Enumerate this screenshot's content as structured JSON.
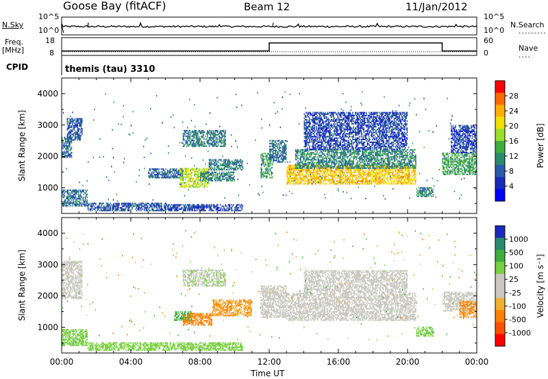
{
  "header": {
    "station": "Goose Bay (fitACF)",
    "beam": "Beam 12",
    "date": "11/Jan/2012"
  },
  "panel_labels": {
    "nsky": "N.Sky",
    "nsearch": "N.Search",
    "freq_line1": "Freq.",
    "freq_line2": "[MHz]",
    "nave": "Nave",
    "cpid": "CPID",
    "cpid_value": "themis (tau) 3310",
    "noise_ticks_top": "10^5",
    "noise_ticks_bottom": "10^0",
    "freq_ticks": [
      "18",
      "8"
    ],
    "nave_ticks": [
      "60",
      "0"
    ]
  },
  "chart_data": [
    {
      "type": "line",
      "name": "noise",
      "series": [
        {
          "name": "N.Sky",
          "style": "solid"
        },
        {
          "name": "N.Search",
          "style": "dotted"
        }
      ]
    },
    {
      "type": "line",
      "name": "frequency_nave",
      "x": [
        0,
        12,
        12,
        22,
        22,
        24
      ],
      "series": [
        {
          "name": "Freq.",
          "values": [
            10.5,
            10.5,
            15,
            15,
            10.5,
            10.5
          ],
          "style": "solid"
        },
        {
          "name": "Nave",
          "values": [
            10,
            10,
            10,
            10,
            10,
            10
          ],
          "style": "dotted"
        }
      ]
    },
    {
      "type": "heatmap",
      "name": "power",
      "ylabel": "Slant Range [km]",
      "ylim": [
        180,
        4500
      ],
      "yticks": [
        1000,
        2000,
        3000,
        4000
      ],
      "colorbar": {
        "label": "Power [dB]",
        "ticks": [
          "28",
          "24",
          "20",
          "16",
          "12",
          "8",
          "4"
        ],
        "colors": [
          "#ff0000",
          "#ff6a00",
          "#ffb000",
          "#f0e000",
          "#9adf2a",
          "#3fae3f",
          "#2a8a70",
          "#2a5aa8",
          "#1a2ab8",
          "#0000ff"
        ]
      },
      "regions": [
        {
          "t0": 0.0,
          "t1": 0.6,
          "r0": 1950,
          "r1": 2600,
          "level": 8
        },
        {
          "t0": 0.3,
          "t1": 1.2,
          "r0": 2500,
          "r1": 3200,
          "level": 6
        },
        {
          "t0": 0.0,
          "t1": 1.5,
          "r0": 400,
          "r1": 900,
          "level": 8
        },
        {
          "t0": 1.5,
          "t1": 6.0,
          "r0": 250,
          "r1": 500,
          "level": 6
        },
        {
          "t0": 6.0,
          "t1": 10.5,
          "r0": 250,
          "r1": 450,
          "level": 5
        },
        {
          "t0": 5.0,
          "t1": 7.0,
          "r0": 1300,
          "r1": 1600,
          "level": 7
        },
        {
          "t0": 6.8,
          "t1": 8.5,
          "r0": 1000,
          "r1": 1600,
          "level": 18
        },
        {
          "t0": 8.0,
          "t1": 10.0,
          "r0": 1200,
          "r1": 1500,
          "level": 9
        },
        {
          "t0": 8.5,
          "t1": 10.5,
          "r0": 1550,
          "r1": 1900,
          "level": 9
        },
        {
          "t0": 7.0,
          "t1": 9.5,
          "r0": 2300,
          "r1": 2800,
          "level": 9
        },
        {
          "t0": 11.5,
          "t1": 12.2,
          "r0": 1300,
          "r1": 2100,
          "level": 12
        },
        {
          "t0": 12.0,
          "t1": 13.0,
          "r0": 1800,
          "r1": 2500,
          "level": 8
        },
        {
          "t0": 13.0,
          "t1": 20.5,
          "r0": 1100,
          "r1": 1700,
          "level": 22
        },
        {
          "t0": 13.5,
          "t1": 20.5,
          "r0": 1600,
          "r1": 2200,
          "level": 10
        },
        {
          "t0": 14.0,
          "t1": 20.0,
          "r0": 2200,
          "r1": 3400,
          "level": 5
        },
        {
          "t0": 20.5,
          "t1": 21.5,
          "r0": 700,
          "r1": 1000,
          "level": 10
        },
        {
          "t0": 22.0,
          "t1": 24.0,
          "r0": 1400,
          "r1": 2100,
          "level": 12
        },
        {
          "t0": 22.5,
          "t1": 24.0,
          "r0": 2100,
          "r1": 3000,
          "level": 5
        }
      ]
    },
    {
      "type": "heatmap",
      "name": "velocity",
      "ylabel": "Slant Range [km]",
      "ylim": [
        180,
        4500
      ],
      "yticks": [
        1000,
        2000,
        3000,
        4000
      ],
      "xlabel": "Time UT",
      "xticks": [
        "00:00",
        "04:00",
        "08:00",
        "12:00",
        "16:00",
        "20:00",
        "00:00"
      ],
      "colorbar": {
        "label": "Velocity [m s⁻¹]",
        "ticks": [
          "1000",
          "500",
          "100",
          "25",
          "-25",
          "-100",
          "-500",
          "-1000"
        ],
        "colors": [
          "#1a2ab8",
          "#2a8a70",
          "#3fae3f",
          "#7ad040",
          "#c8c8c0",
          "#c8c8c0",
          "#f0b030",
          "#ff8000",
          "#ff5000",
          "#ff0000"
        ]
      },
      "regions": [
        {
          "t0": 0.0,
          "t1": 1.2,
          "r0": 1900,
          "r1": 3100,
          "vel": 0
        },
        {
          "t0": 0.0,
          "t1": 1.5,
          "r0": 400,
          "r1": 900,
          "vel": 80
        },
        {
          "t0": 1.5,
          "t1": 10.5,
          "r0": 250,
          "r1": 500,
          "vel": 40
        },
        {
          "t0": 6.5,
          "t1": 7.5,
          "r0": 1200,
          "r1": 1500,
          "vel": 150
        },
        {
          "t0": 7.0,
          "t1": 8.7,
          "r0": 1050,
          "r1": 1450,
          "vel": -150
        },
        {
          "t0": 8.7,
          "t1": 11.0,
          "r0": 1350,
          "r1": 1850,
          "vel": -100
        },
        {
          "t0": 7.0,
          "t1": 9.5,
          "r0": 2300,
          "r1": 2800,
          "vel": 20
        },
        {
          "t0": 11.5,
          "t1": 13.0,
          "r0": 1300,
          "r1": 2300,
          "vel": 0
        },
        {
          "t0": 13.0,
          "t1": 20.5,
          "r0": 1200,
          "r1": 2100,
          "vel": 0
        },
        {
          "t0": 14.0,
          "t1": 20.0,
          "r0": 2100,
          "r1": 2800,
          "vel": 0
        },
        {
          "t0": 20.5,
          "t1": 21.5,
          "r0": 700,
          "r1": 1000,
          "vel": 80
        },
        {
          "t0": 22.0,
          "t1": 24.0,
          "r0": 1500,
          "r1": 2100,
          "vel": -10
        },
        {
          "t0": 23.0,
          "t1": 24.0,
          "r0": 1300,
          "r1": 1800,
          "vel": -120
        }
      ]
    }
  ]
}
